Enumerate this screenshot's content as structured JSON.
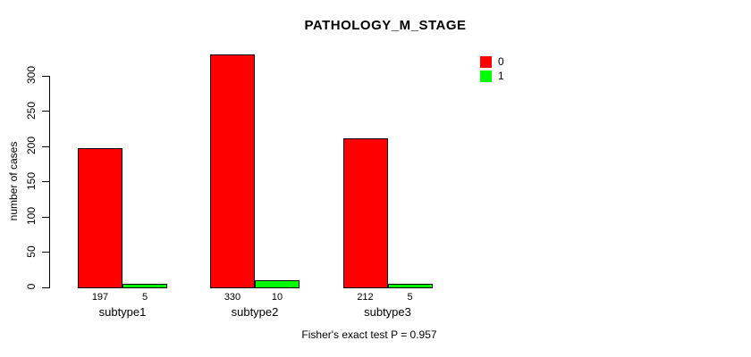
{
  "chart_data": {
    "type": "bar",
    "title": "PATHOLOGY_M_STAGE",
    "ylabel": "number of cases",
    "xlabel": "",
    "categories": [
      "subtype1",
      "subtype2",
      "subtype3"
    ],
    "series": [
      {
        "name": "0",
        "color": "#FF0000",
        "values": [
          197,
          330,
          212
        ]
      },
      {
        "name": "1",
        "color": "#00FF00",
        "values": [
          5,
          10,
          5
        ]
      }
    ],
    "bar_value_labels": [
      [
        "197",
        "5"
      ],
      [
        "330",
        "10"
      ],
      [
        "212",
        "5"
      ]
    ],
    "ylim": [
      0,
      330
    ],
    "yticks": [
      0,
      50,
      100,
      150,
      200,
      250,
      300
    ],
    "grid": false,
    "legend_position": "top-right",
    "legend_entries": [
      {
        "label": "0",
        "color": "#FF0000"
      },
      {
        "label": "1",
        "color": "#00FF00"
      }
    ],
    "annotation": "Fisher's exact test P = 0.957"
  }
}
